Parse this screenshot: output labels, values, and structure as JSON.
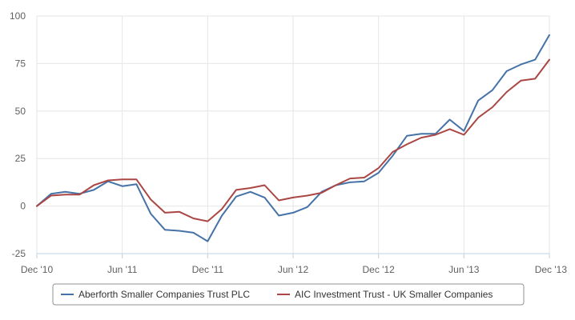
{
  "chart_data": {
    "type": "line",
    "title": "",
    "xlabel": "",
    "ylabel": "",
    "ylim": [
      -25,
      100
    ],
    "y_ticks": [
      -25,
      0,
      25,
      50,
      75,
      100
    ],
    "x_tick_labels": [
      "Dec '10",
      "Jun '11",
      "Dec '11",
      "Jun '12",
      "Dec '12",
      "Jun '13",
      "Dec '13"
    ],
    "grid": true,
    "legend_position": "bottom-center",
    "x": [
      "2010-12",
      "2011-01",
      "2011-02",
      "2011-03",
      "2011-04",
      "2011-05",
      "2011-06",
      "2011-07",
      "2011-08",
      "2011-09",
      "2011-10",
      "2011-11",
      "2011-12",
      "2012-01",
      "2012-02",
      "2012-03",
      "2012-04",
      "2012-05",
      "2012-06",
      "2012-07",
      "2012-08",
      "2012-09",
      "2012-10",
      "2012-11",
      "2012-12",
      "2013-01",
      "2013-02",
      "2013-03",
      "2013-04",
      "2013-05",
      "2013-06",
      "2013-07",
      "2013-08",
      "2013-09",
      "2013-10",
      "2013-11",
      "2013-12"
    ],
    "series": [
      {
        "name": "Aberforth Smaller Companies Trust PLC",
        "color": "#4572a7",
        "values": [
          0,
          6.5,
          7.5,
          6.5,
          8.5,
          13,
          10.5,
          11.5,
          -4,
          -12.5,
          -13,
          -14,
          -18.5,
          -5,
          5,
          7.5,
          4.5,
          -5,
          -3.5,
          -0.5,
          7.5,
          11,
          12.5,
          13,
          17.5,
          26.5,
          37,
          38,
          38,
          45.5,
          39.5,
          55.5,
          61,
          71,
          74.5,
          77,
          90
        ]
      },
      {
        "name": "AIC Investment Trust - UK Smaller Companies",
        "color": "#aa4643",
        "values": [
          0,
          5.5,
          6,
          6,
          11,
          13.5,
          14,
          14,
          3.5,
          -3.5,
          -3,
          -6.5,
          -8,
          -1.5,
          8.5,
          9.5,
          11,
          3,
          4.5,
          5.5,
          7,
          11,
          14.5,
          15,
          20,
          28.5,
          32.5,
          36,
          37.5,
          40.5,
          37.5,
          46.5,
          52,
          60,
          66,
          67,
          77
        ]
      }
    ]
  }
}
